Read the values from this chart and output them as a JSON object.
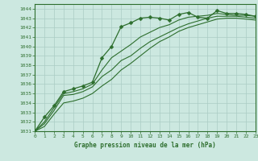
{
  "title": "Graphe pression niveau de la mer (hPa)",
  "bg_color": "#cce8e0",
  "plot_bg": "#cce8e0",
  "grid_color": "#aaccc4",
  "line_color": "#2d6e2d",
  "label_bg": "#cce8e0",
  "xlim": [
    0,
    23
  ],
  "ylim": [
    1031,
    1044.5
  ],
  "xticks": [
    0,
    1,
    2,
    3,
    4,
    5,
    6,
    7,
    8,
    9,
    10,
    11,
    12,
    13,
    14,
    15,
    16,
    17,
    18,
    19,
    20,
    21,
    22,
    23
  ],
  "yticks": [
    1031,
    1032,
    1033,
    1034,
    1035,
    1036,
    1037,
    1038,
    1039,
    1040,
    1041,
    1042,
    1043,
    1044
  ],
  "series": [
    {
      "x": [
        0,
        1,
        2,
        3,
        4,
        5,
        6,
        7,
        8,
        9,
        10,
        11,
        12,
        13,
        14,
        15,
        16,
        17,
        18,
        19,
        20,
        21,
        22,
        23
      ],
      "y": [
        1031.0,
        1032.5,
        1033.7,
        1035.2,
        1035.5,
        1035.8,
        1036.2,
        1038.8,
        1040.0,
        1042.1,
        1042.5,
        1043.0,
        1043.1,
        1043.0,
        1042.8,
        1043.4,
        1043.6,
        1043.1,
        1043.0,
        1043.8,
        1043.5,
        1043.5,
        1043.4,
        1043.2
      ],
      "marker": "D",
      "markersize": 2.5,
      "linewidth": 0.9
    },
    {
      "x": [
        0,
        1,
        2,
        3,
        4,
        5,
        6,
        7,
        8,
        9,
        10,
        11,
        12,
        13,
        14,
        15,
        16,
        17,
        18,
        19,
        20,
        21,
        22,
        23
      ],
      "y": [
        1031.0,
        1032.0,
        1033.5,
        1035.0,
        1035.2,
        1035.5,
        1036.0,
        1037.5,
        1038.8,
        1039.5,
        1040.2,
        1041.0,
        1041.5,
        1042.0,
        1042.3,
        1042.8,
        1043.1,
        1043.2,
        1043.3,
        1043.5,
        1043.4,
        1043.3,
        1043.3,
        1043.2
      ],
      "marker": null,
      "markersize": 0,
      "linewidth": 0.8
    },
    {
      "x": [
        0,
        1,
        2,
        3,
        4,
        5,
        6,
        7,
        8,
        9,
        10,
        11,
        12,
        13,
        14,
        15,
        16,
        17,
        18,
        19,
        20,
        21,
        22,
        23
      ],
      "y": [
        1031.0,
        1031.8,
        1033.2,
        1034.8,
        1034.9,
        1035.2,
        1035.7,
        1036.8,
        1037.5,
        1038.5,
        1039.0,
        1039.8,
        1040.5,
        1041.0,
        1041.5,
        1042.0,
        1042.4,
        1042.7,
        1043.0,
        1043.2,
        1043.2,
        1043.2,
        1043.1,
        1043.0
      ],
      "marker": null,
      "markersize": 0,
      "linewidth": 0.8
    },
    {
      "x": [
        0,
        1,
        2,
        3,
        4,
        5,
        6,
        7,
        8,
        9,
        10,
        11,
        12,
        13,
        14,
        15,
        16,
        17,
        18,
        19,
        20,
        21,
        22,
        23
      ],
      "y": [
        1031.0,
        1031.5,
        1032.8,
        1034.0,
        1034.2,
        1034.5,
        1035.0,
        1035.8,
        1036.5,
        1037.5,
        1038.2,
        1039.0,
        1039.8,
        1040.5,
        1041.0,
        1041.6,
        1042.0,
        1042.3,
        1042.6,
        1042.9,
        1043.0,
        1043.0,
        1042.9,
        1042.8
      ],
      "marker": null,
      "markersize": 0,
      "linewidth": 0.8
    }
  ]
}
